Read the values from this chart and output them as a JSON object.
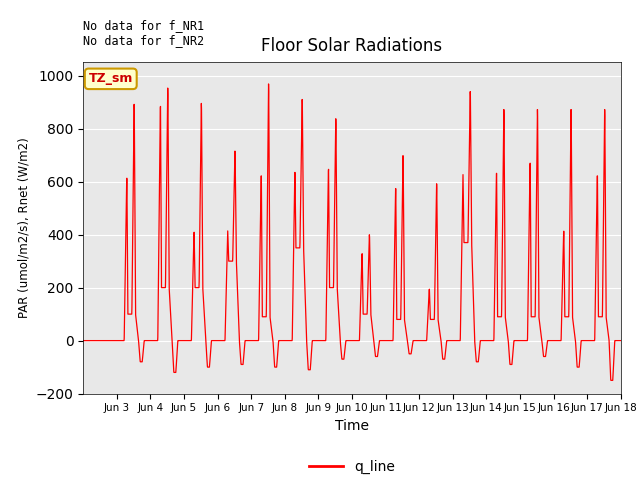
{
  "title": "Floor Solar Radiations",
  "xlabel": "Time",
  "ylabel": "PAR (umol/m2/s), Rnet (W/m2)",
  "ylim": [
    -200,
    1050
  ],
  "yticks": [
    -200,
    0,
    200,
    400,
    600,
    800,
    1000
  ],
  "background_color": "#e8e8e8",
  "line_color": "red",
  "legend_label": "q_line",
  "annotation_text": "No data for f_NR1\nNo data for f_NR2",
  "legend_box_text": "TZ_sm",
  "legend_box_bg": "#ffffcc",
  "legend_box_border": "#cc9900",
  "xtick_labels": [
    "Jun 3",
    "Jun 4",
    "Jun 5",
    "Jun 6",
    "Jun 7",
    "Jun 8",
    "Jun 9",
    "Jun 10",
    "Jun 11",
    "Jun 12",
    "Jun 13",
    "Jun 14",
    "Jun 15",
    "Jun 16",
    "Jun 17",
    "Jun 18"
  ],
  "day_profiles": [
    {
      "peak1": 640,
      "peak2": 920,
      "shoulder": 100,
      "dip": -80
    },
    {
      "peak1": 920,
      "peak2": 980,
      "shoulder": 200,
      "dip": -120
    },
    {
      "peak1": 420,
      "peak2": 920,
      "shoulder": 200,
      "dip": -100
    },
    {
      "peak1": 420,
      "peak2": 730,
      "shoulder": 300,
      "dip": -90
    },
    {
      "peak1": 650,
      "peak2": 1000,
      "shoulder": 90,
      "dip": -100
    },
    {
      "peak1": 650,
      "peak2": 930,
      "shoulder": 350,
      "dip": -110
    },
    {
      "peak1": 670,
      "peak2": 860,
      "shoulder": 200,
      "dip": -70
    },
    {
      "peak1": 340,
      "peak2": 410,
      "shoulder": 100,
      "dip": -60
    },
    {
      "peak1": 600,
      "peak2": 720,
      "shoulder": 80,
      "dip": -50
    },
    {
      "peak1": 200,
      "peak2": 610,
      "shoulder": 80,
      "dip": -70
    },
    {
      "peak1": 640,
      "peak2": 960,
      "shoulder": 370,
      "dip": -80
    },
    {
      "peak1": 660,
      "peak2": 900,
      "shoulder": 90,
      "dip": -90
    },
    {
      "peak1": 700,
      "peak2": 900,
      "shoulder": 90,
      "dip": -60
    },
    {
      "peak1": 430,
      "peak2": 900,
      "shoulder": 90,
      "dip": -100
    },
    {
      "peak1": 650,
      "peak2": 900,
      "shoulder": 90,
      "dip": -150
    }
  ]
}
